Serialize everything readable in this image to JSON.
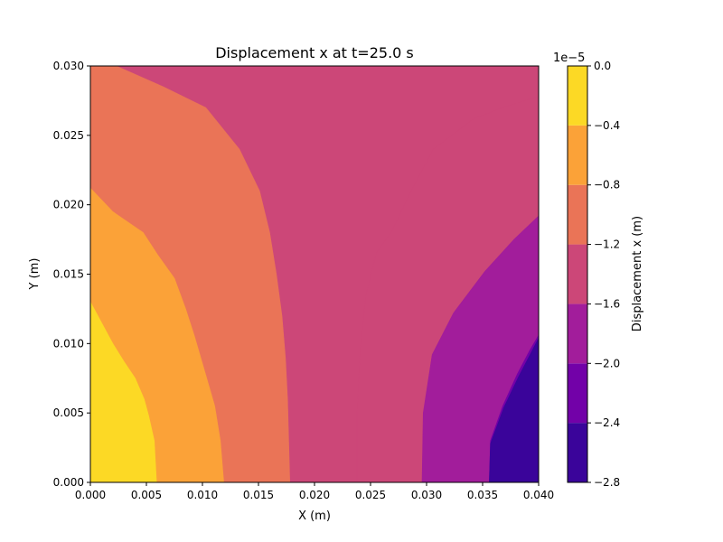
{
  "chart_data": {
    "type": "contourf",
    "title": "Displacement x at t=25.0 s",
    "xlabel": "X (m)",
    "ylabel": "Y (m)",
    "xlim": [
      0.0,
      0.04
    ],
    "ylim": [
      0.0,
      0.03
    ],
    "x_ticks": [
      "0.000",
      "0.005",
      "0.010",
      "0.015",
      "0.020",
      "0.025",
      "0.030",
      "0.035",
      "0.040"
    ],
    "y_ticks": [
      "0.000",
      "0.005",
      "0.010",
      "0.015",
      "0.020",
      "0.025",
      "0.030"
    ],
    "grid": false,
    "colorbar": {
      "label": "Displacement x (m)",
      "offset_text": "1e−5",
      "scale": 1e-05,
      "levels": [
        -2.8,
        -2.4,
        -2.0,
        -1.6,
        -1.2,
        -0.8,
        -0.4,
        0.0
      ],
      "tick_labels": [
        "−2.8",
        "−2.4",
        "−2.0",
        "−1.6",
        "−1.2",
        "−0.8",
        "−0.4",
        "0.0"
      ],
      "colors": [
        "#3a049a",
        "#7201a8",
        "#a21d9b",
        "#cc4778",
        "#ea7457",
        "#fba238",
        "#fcd925"
      ],
      "cmap": "plasma"
    },
    "regions": [
      {
        "range": [
          -0.4,
          0.0
        ],
        "color": "#fcd925",
        "boundary": [
          [
            0.0,
            0.013
          ],
          [
            0.001,
            0.0115
          ],
          [
            0.002,
            0.01
          ],
          [
            0.003,
            0.0087
          ],
          [
            0.004,
            0.0075
          ],
          [
            0.0048,
            0.006
          ],
          [
            0.0052,
            0.0048
          ],
          [
            0.0057,
            0.003
          ],
          [
            0.0059,
            0.0
          ]
        ]
      },
      {
        "range": [
          -0.8,
          -0.4
        ],
        "color": "#fba238",
        "boundary": [
          [
            0.0,
            0.0212
          ],
          [
            0.002,
            0.0195
          ],
          [
            0.0047,
            0.018
          ],
          [
            0.006,
            0.0164
          ],
          [
            0.0075,
            0.0147
          ],
          [
            0.0085,
            0.0125
          ],
          [
            0.0093,
            0.0105
          ],
          [
            0.0102,
            0.008
          ],
          [
            0.0111,
            0.0055
          ],
          [
            0.0116,
            0.003
          ],
          [
            0.0119,
            0.0
          ]
        ]
      },
      {
        "range": [
          -1.2,
          -0.8
        ],
        "color": "#ea7457",
        "boundary": [
          [
            0.0023,
            0.03
          ],
          [
            0.0065,
            0.0285
          ],
          [
            0.0103,
            0.027
          ],
          [
            0.0133,
            0.024
          ],
          [
            0.0151,
            0.021
          ],
          [
            0.016,
            0.018
          ],
          [
            0.0166,
            0.015
          ],
          [
            0.0171,
            0.012
          ],
          [
            0.0174,
            0.009
          ],
          [
            0.0176,
            0.006
          ],
          [
            0.0178,
            0.0
          ]
        ]
      },
      {
        "range": [
          -1.6,
          -1.2
        ],
        "color": "#cc4778",
        "boundary": [
          [
            0.0238,
            0.0
          ],
          [
            0.0238,
            0.005
          ],
          [
            0.0241,
            0.0098
          ],
          [
            0.0246,
            0.0135
          ],
          [
            0.0255,
            0.0165
          ],
          [
            0.0269,
            0.0181
          ],
          [
            0.0285,
            0.0208
          ],
          [
            0.0306,
            0.024
          ],
          [
            0.0342,
            0.0262
          ],
          [
            0.0371,
            0.0271
          ],
          [
            0.04,
            0.0278
          ]
        ]
      },
      {
        "range": [
          -2.0,
          -1.6
        ],
        "color": "#a21d9b",
        "boundary": [
          [
            0.0296,
            0.0
          ],
          [
            0.0297,
            0.005
          ],
          [
            0.0305,
            0.0092
          ],
          [
            0.0324,
            0.0122
          ],
          [
            0.0352,
            0.0152
          ],
          [
            0.0378,
            0.0175
          ],
          [
            0.04,
            0.0192
          ]
        ]
      },
      {
        "range": [
          -2.4,
          -2.0
        ],
        "color": "#7201a8",
        "boundary": [
          [
            0.0356,
            0.0
          ],
          [
            0.0357,
            0.003
          ],
          [
            0.0368,
            0.0055
          ],
          [
            0.0381,
            0.0078
          ],
          [
            0.0392,
            0.0095
          ],
          [
            0.04,
            0.0106
          ]
        ]
      }
    ]
  }
}
